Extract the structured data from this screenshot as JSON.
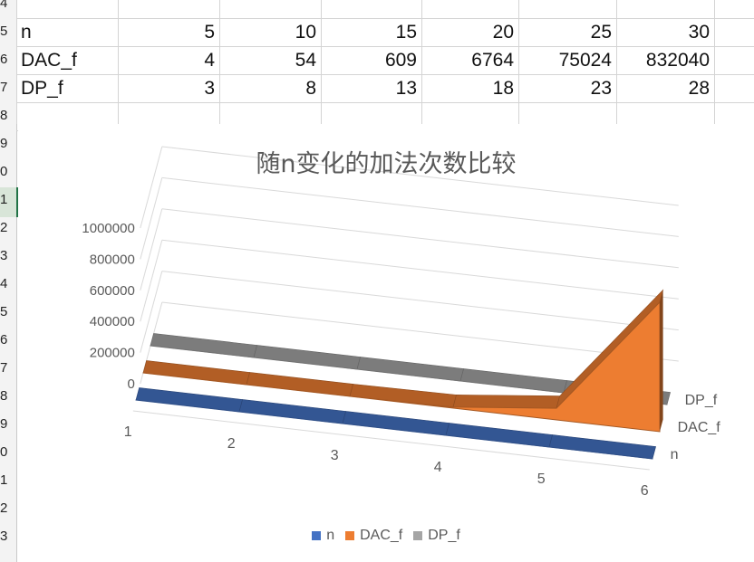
{
  "table": {
    "rows": [
      {
        "row_num": "5",
        "label": "n",
        "values": [
          "5",
          "10",
          "15",
          "20",
          "25",
          "30"
        ]
      },
      {
        "row_num": "6",
        "label": "DAC_f",
        "values": [
          "4",
          "54",
          "609",
          "6764",
          "75024",
          "832040"
        ]
      },
      {
        "row_num": "7",
        "label": "DP_f",
        "values": [
          "3",
          "8",
          "13",
          "18",
          "23",
          "28"
        ]
      }
    ],
    "row_numbers": [
      "4",
      "5",
      "6",
      "7",
      "8",
      "9",
      "0",
      "1",
      "2",
      "3",
      "4",
      "5",
      "6",
      "7",
      "8",
      "9",
      "0",
      "1",
      "2",
      "3"
    ]
  },
  "chart_data": {
    "type": "area",
    "subtype": "3d-area",
    "title": "随n变化的加法次数比较",
    "categories": [
      "1",
      "2",
      "3",
      "4",
      "5",
      "6"
    ],
    "series": [
      {
        "name": "n",
        "values": [
          5,
          10,
          15,
          20,
          25,
          30
        ],
        "color": "#4472c4"
      },
      {
        "name": "DAC_f",
        "values": [
          4,
          54,
          609,
          6764,
          75024,
          832040
        ],
        "color": "#ed7d31"
      },
      {
        "name": "DP_f",
        "values": [
          3,
          8,
          13,
          18,
          23,
          28
        ],
        "color": "#a5a5a5"
      }
    ],
    "y_ticks": [
      "0",
      "200000",
      "400000",
      "600000",
      "800000",
      "1000000"
    ],
    "ylim": [
      0,
      1000000
    ],
    "depth_labels": [
      "DP_f",
      "DAC_f",
      "n"
    ],
    "grid": true,
    "legend": "bottom"
  }
}
